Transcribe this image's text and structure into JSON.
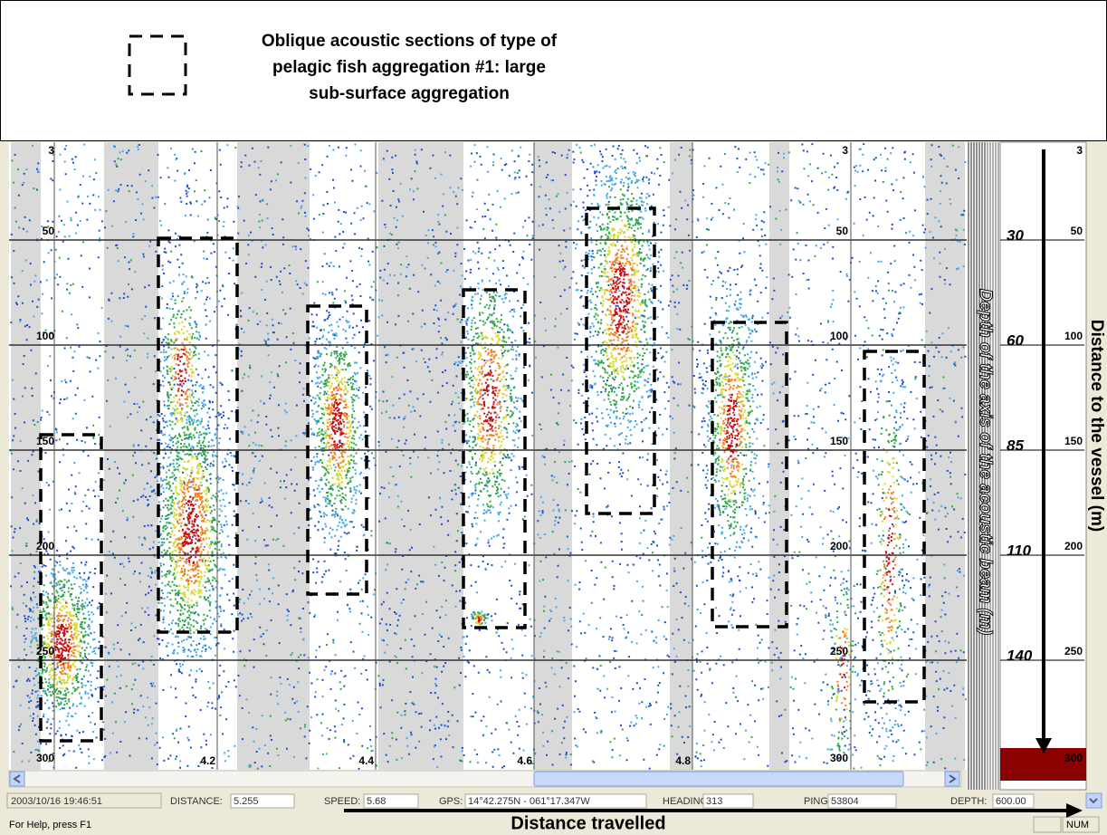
{
  "legend": {
    "lines": [
      "Oblique acoustic sections of type of",
      "pelagic fish aggregation #1: large",
      "sub-surface aggregation"
    ]
  },
  "echogram": {
    "depth_labels": [
      "3",
      "50",
      "100",
      "150",
      "200",
      "250",
      "300"
    ],
    "distance_labels": [
      "4.2",
      "4.4",
      "4.6",
      "4.8"
    ]
  },
  "right_scale": {
    "range_labels": [
      "3",
      "50",
      "100",
      "150",
      "200",
      "250",
      "300"
    ],
    "oblique_labels": [
      "30",
      "60",
      "85",
      "110",
      "140"
    ],
    "oblique_title": "Depth of the axis of the acoustic beam (m)",
    "range_title": "Distance to the vessel (m)"
  },
  "x_title": "Distance travelled",
  "status_bar": {
    "timestamp": "2003/10/16 19:46:51",
    "fields": [
      {
        "label": "DISTANCE:",
        "value": "5.255"
      },
      {
        "label": "SPEED:",
        "value": "5.68"
      },
      {
        "label": "GPS:",
        "value": "14°42.275N - 061°17.347W"
      },
      {
        "label": "HEADING:",
        "value": "313"
      },
      {
        "label": "PING:",
        "value": "53804"
      },
      {
        "label": "DEPTH:",
        "value": "600.00"
      }
    ]
  },
  "help_bar": {
    "text": "For Help, press F1",
    "num": "NUM"
  }
}
